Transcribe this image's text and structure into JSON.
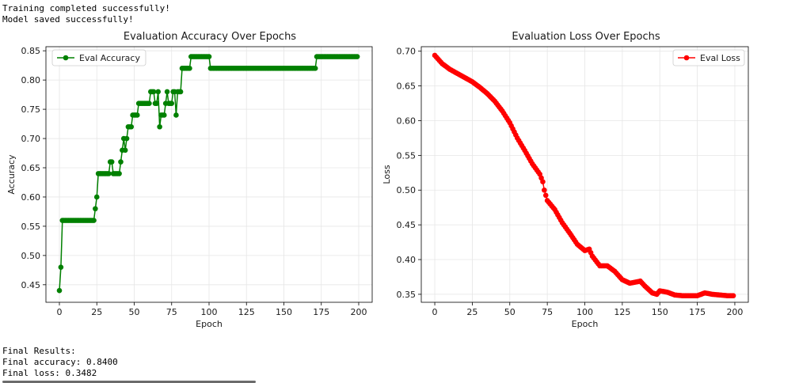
{
  "console_top": [
    "Training completed successfully!",
    "Model saved successfully!"
  ],
  "console_bottom": [
    "Final Results:",
    "Final accuracy: 0.8400",
    "Final loss: 0.3482"
  ],
  "chart_data": [
    {
      "type": "line",
      "title": "Evaluation Accuracy Over Epochs",
      "xlabel": "Epoch",
      "ylabel": "Accuracy",
      "xlim": [
        -9,
        209
      ],
      "ylim": [
        0.42,
        0.857
      ],
      "xticks": [
        0,
        25,
        50,
        75,
        100,
        125,
        150,
        175,
        200
      ],
      "yticks": [
        0.45,
        0.5,
        0.55,
        0.6,
        0.65,
        0.7,
        0.75,
        0.8,
        0.85
      ],
      "ytick_decimals": 2,
      "grid": true,
      "legend": "upper-left",
      "color": "#008000",
      "series": [
        {
          "name": "Eval Accuracy",
          "segments": [
            [
              0,
              0.44
            ],
            [
              1,
              0.48
            ],
            [
              2,
              0.56
            ],
            [
              24,
              0.56
            ],
            [
              24,
              0.58
            ],
            [
              25,
              0.6
            ],
            [
              26,
              0.64
            ],
            [
              33,
              0.64
            ],
            [
              34,
              0.66
            ],
            [
              35,
              0.66
            ],
            [
              36,
              0.64
            ],
            [
              40,
              0.64
            ],
            [
              41,
              0.66
            ],
            [
              42,
              0.68
            ],
            [
              43,
              0.7
            ],
            [
              44,
              0.68
            ],
            [
              45,
              0.7
            ],
            [
              46,
              0.72
            ],
            [
              48,
              0.72
            ],
            [
              49,
              0.74
            ],
            [
              52,
              0.74
            ],
            [
              53,
              0.76
            ],
            [
              60,
              0.76
            ],
            [
              61,
              0.78
            ],
            [
              64,
              0.78
            ],
            [
              64,
              0.76
            ],
            [
              65,
              0.76
            ],
            [
              66,
              0.78
            ],
            [
              67,
              0.72
            ],
            [
              68,
              0.74
            ],
            [
              70,
              0.74
            ],
            [
              71,
              0.76
            ],
            [
              72,
              0.78
            ],
            [
              73,
              0.76
            ],
            [
              75,
              0.76
            ],
            [
              76,
              0.78
            ],
            [
              77,
              0.78
            ],
            [
              78,
              0.74
            ],
            [
              79,
              0.78
            ],
            [
              81,
              0.78
            ],
            [
              82,
              0.82
            ],
            [
              87,
              0.82
            ],
            [
              88,
              0.84
            ],
            [
              101,
              0.84
            ],
            [
              101,
              0.82
            ],
            [
              172,
              0.82
            ],
            [
              172,
              0.84
            ],
            [
              199,
              0.84
            ]
          ]
        }
      ]
    },
    {
      "type": "line",
      "title": "Evaluation Loss Over Epochs",
      "xlabel": "Epoch",
      "ylabel": "Loss",
      "xlim": [
        -9,
        209
      ],
      "ylim": [
        0.3385,
        0.7065
      ],
      "xticks": [
        0,
        25,
        50,
        75,
        100,
        125,
        150,
        175,
        200
      ],
      "yticks": [
        0.35,
        0.4,
        0.45,
        0.5,
        0.55,
        0.6,
        0.65,
        0.7
      ],
      "ytick_decimals": 2,
      "grid": true,
      "legend": "upper-right",
      "color": "#ff0000",
      "series": [
        {
          "name": "Eval Loss",
          "anchors": [
            [
              0,
              0.694
            ],
            [
              5,
              0.682
            ],
            [
              10,
              0.674
            ],
            [
              15,
              0.668
            ],
            [
              20,
              0.662
            ],
            [
              25,
              0.656
            ],
            [
              30,
              0.648
            ],
            [
              35,
              0.639
            ],
            [
              40,
              0.628
            ],
            [
              45,
              0.614
            ],
            [
              50,
              0.597
            ],
            [
              55,
              0.575
            ],
            [
              60,
              0.557
            ],
            [
              65,
              0.538
            ],
            [
              70,
              0.523
            ],
            [
              72,
              0.512
            ],
            [
              73,
              0.5
            ],
            [
              75,
              0.485
            ],
            [
              80,
              0.472
            ],
            [
              85,
              0.453
            ],
            [
              90,
              0.438
            ],
            [
              95,
              0.422
            ],
            [
              100,
              0.413
            ],
            [
              103,
              0.415
            ],
            [
              105,
              0.405
            ],
            [
              110,
              0.391
            ],
            [
              115,
              0.391
            ],
            [
              120,
              0.383
            ],
            [
              125,
              0.371
            ],
            [
              130,
              0.366
            ],
            [
              135,
              0.368
            ],
            [
              137,
              0.369
            ],
            [
              140,
              0.362
            ],
            [
              145,
              0.352
            ],
            [
              148,
              0.35
            ],
            [
              150,
              0.355
            ],
            [
              155,
              0.353
            ],
            [
              160,
              0.349
            ],
            [
              165,
              0.348
            ],
            [
              175,
              0.348
            ],
            [
              180,
              0.352
            ],
            [
              185,
              0.35
            ],
            [
              190,
              0.349
            ],
            [
              195,
              0.348
            ],
            [
              199,
              0.348
            ]
          ]
        }
      ]
    }
  ]
}
